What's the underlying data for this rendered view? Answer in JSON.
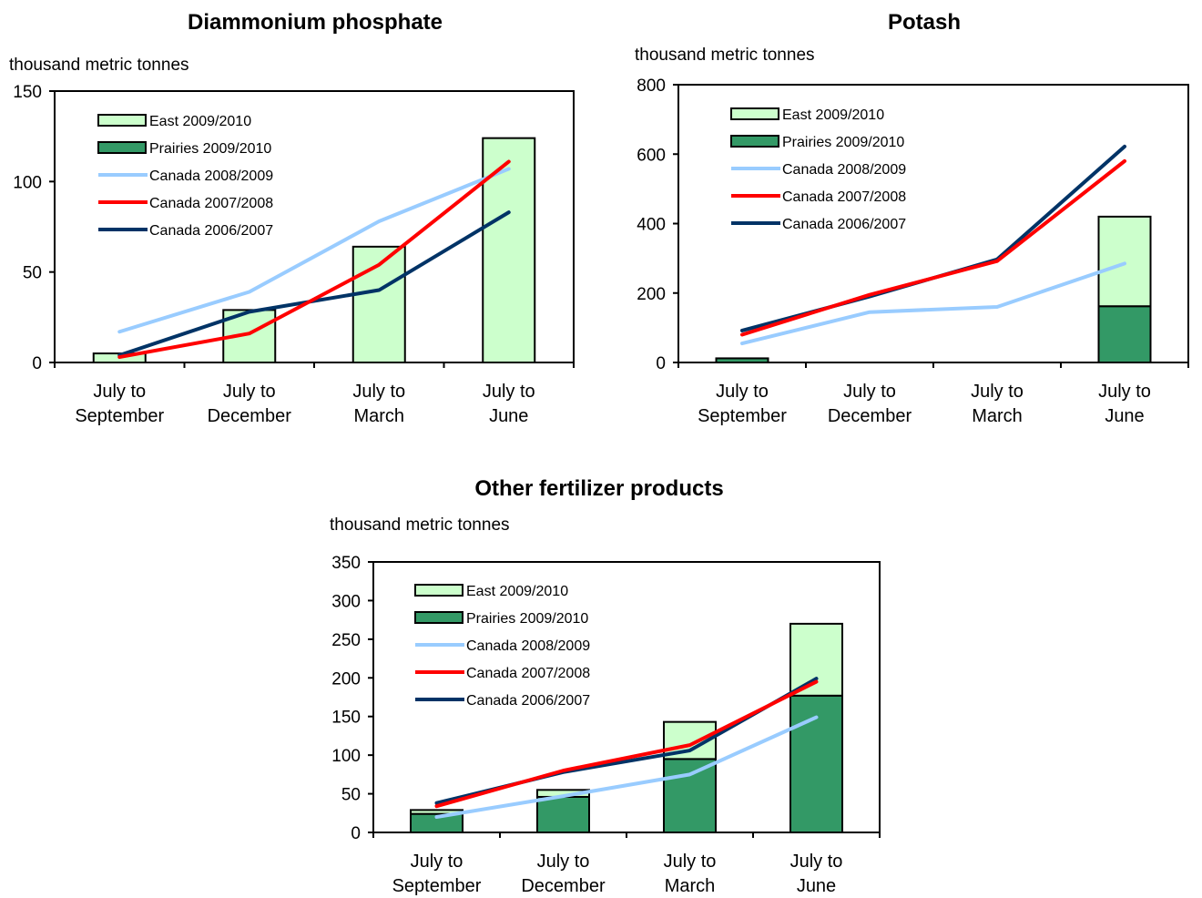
{
  "colors": {
    "east": "#ccffcc",
    "prairies": "#339966",
    "canada_2008_2009": "#99ccff",
    "canada_2007_2008": "#ff0000",
    "canada_2006_2007": "#003366"
  },
  "chart_data": [
    {
      "type": "bar",
      "title": "Diammonium phosphate",
      "ylabel": "thousand metric tonnes",
      "categories": [
        "July to September",
        "July to December",
        "July to March",
        "July to June"
      ],
      "ylim": [
        0,
        150
      ],
      "yticks": [
        0,
        50,
        100,
        150
      ],
      "grid": false,
      "legend_position": "top-left",
      "bar_series": [
        {
          "name": "East 2009/2010",
          "color_key": "east",
          "values": [
            5,
            29,
            64,
            124
          ]
        },
        {
          "name": "Prairies 2009/2010",
          "color_key": "prairies",
          "values": [
            0,
            0,
            0,
            0
          ]
        }
      ],
      "line_series": [
        {
          "name": "Canada 2008/2009",
          "color_key": "canada_2008_2009",
          "values": [
            17,
            39,
            78,
            107
          ]
        },
        {
          "name": "Canada 2007/2008",
          "color_key": "canada_2007_2008",
          "values": [
            3,
            16,
            54,
            111
          ]
        },
        {
          "name": "Canada 2006/2007",
          "color_key": "canada_2006_2007",
          "values": [
            4,
            28,
            40,
            83
          ]
        }
      ]
    },
    {
      "type": "bar",
      "title": "Potash",
      "ylabel": "thousand metric tonnes",
      "categories": [
        "July to September",
        "July to December",
        "July to March",
        "July to June"
      ],
      "ylim": [
        0,
        800
      ],
      "yticks": [
        0,
        200,
        400,
        600,
        800
      ],
      "grid": false,
      "legend_position": "top-left",
      "bar_series": [
        {
          "name": "East 2009/2010",
          "color_key": "east",
          "values": [
            0,
            0,
            0,
            258
          ]
        },
        {
          "name": "Prairies 2009/2010",
          "color_key": "prairies",
          "values": [
            12,
            0,
            0,
            162
          ]
        }
      ],
      "line_series": [
        {
          "name": "Canada 2008/2009",
          "color_key": "canada_2008_2009",
          "values": [
            55,
            145,
            160,
            285
          ]
        },
        {
          "name": "Canada 2007/2008",
          "color_key": "canada_2007_2008",
          "values": [
            80,
            195,
            292,
            580
          ]
        },
        {
          "name": "Canada 2006/2007",
          "color_key": "canada_2006_2007",
          "values": [
            92,
            190,
            297,
            622
          ]
        }
      ]
    },
    {
      "type": "bar",
      "title": "Other fertilizer products",
      "ylabel": "thousand metric tonnes",
      "categories": [
        "July to September",
        "July to December",
        "July to March",
        "July to June"
      ],
      "ylim": [
        0,
        350
      ],
      "yticks": [
        0,
        50,
        100,
        150,
        200,
        250,
        300,
        350
      ],
      "grid": false,
      "legend_position": "top-left",
      "bar_series": [
        {
          "name": "East 2009/2010",
          "color_key": "east",
          "values": [
            5,
            9,
            48,
            93
          ]
        },
        {
          "name": "Prairies 2009/2010",
          "color_key": "prairies",
          "values": [
            24,
            46,
            95,
            177
          ]
        }
      ],
      "line_series": [
        {
          "name": "Canada 2008/2009",
          "color_key": "canada_2008_2009",
          "values": [
            20,
            47,
            75,
            149
          ]
        },
        {
          "name": "Canada 2007/2008",
          "color_key": "canada_2007_2008",
          "values": [
            34,
            80,
            113,
            195
          ]
        },
        {
          "name": "Canada 2006/2007",
          "color_key": "canada_2006_2007",
          "values": [
            38,
            78,
            106,
            199
          ]
        }
      ]
    }
  ]
}
